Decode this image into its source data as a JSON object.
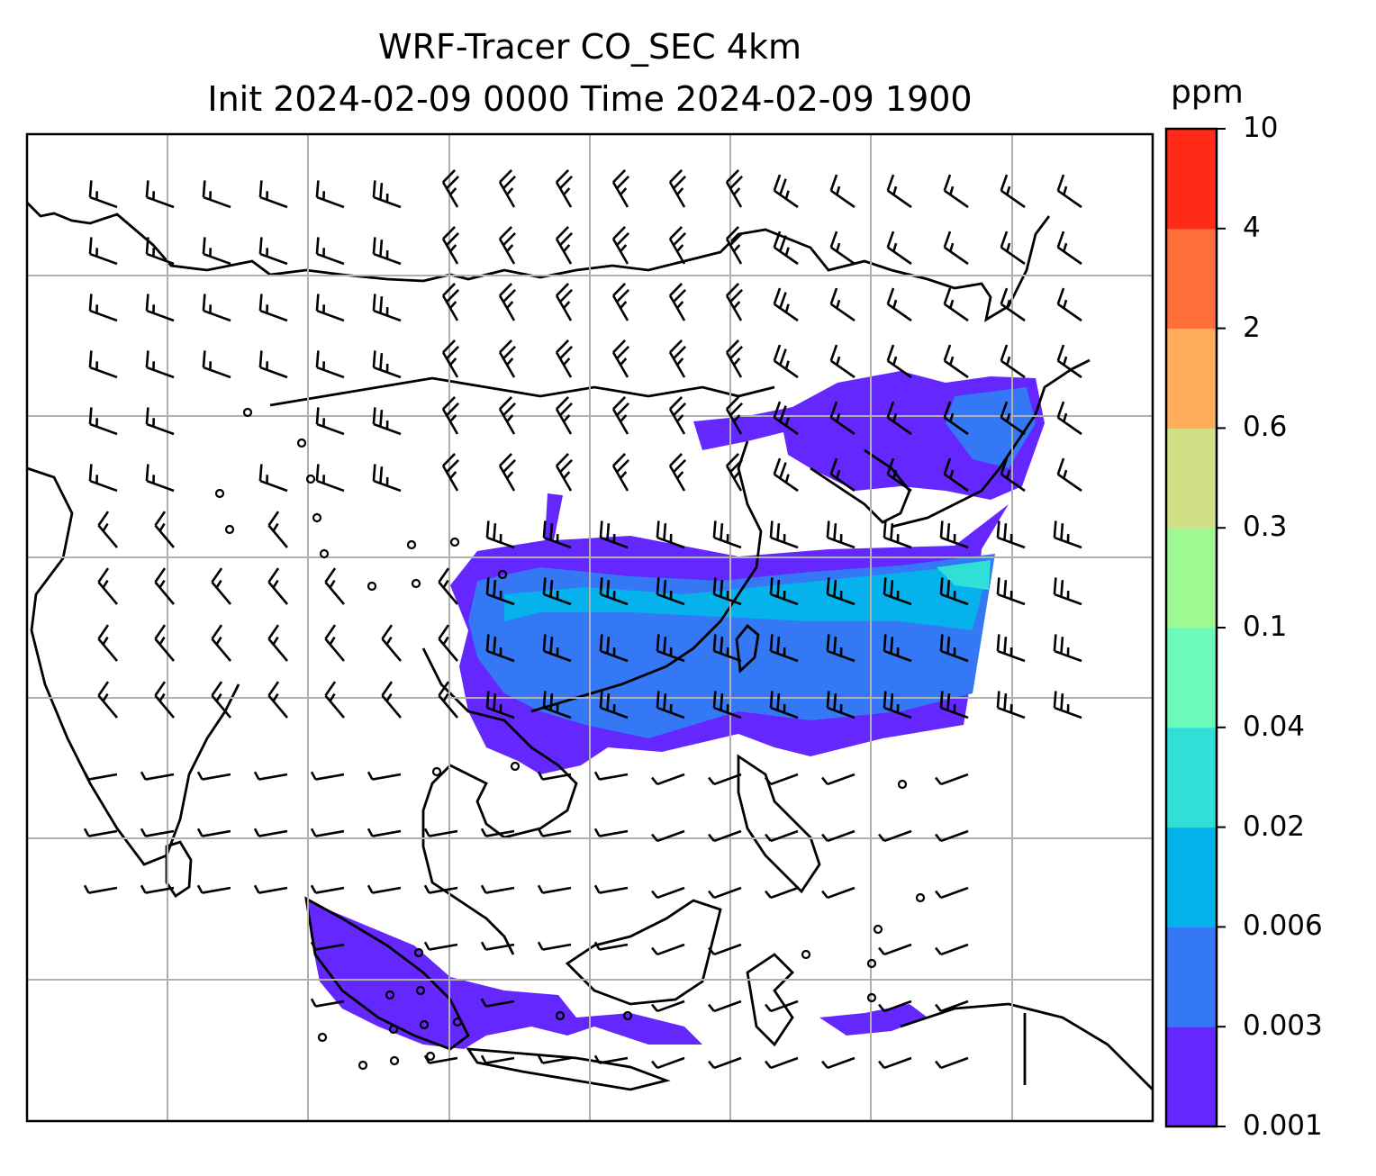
{
  "title": {
    "line1": "WRF-Tracer CO_SEC 4km",
    "line2": "Init 2024-02-09 0000 Time 2024-02-09 1900"
  },
  "colorbar": {
    "unit": "ppm",
    "levels": [
      "0.001",
      "0.003",
      "0.006",
      "0.02",
      "0.04",
      "0.1",
      "0.3",
      "0.6",
      "2",
      "4",
      "10"
    ],
    "colors": [
      "#6428ff",
      "#3478f5",
      "#05b2ec",
      "#30dfd6",
      "#6cf9bb",
      "#9ff993",
      "#cfe086",
      "#ffad5a",
      "#ff6f3a",
      "#ff2a17"
    ]
  },
  "chart_data": {
    "type": "heatmap",
    "title": "WRF-Tracer CO_SEC 4km\nInit 2024-02-09 0000 Time 2024-02-09 1900",
    "colorbar_label": "ppm",
    "colorbar_ticks": [
      0.001,
      0.003,
      0.006,
      0.02,
      0.04,
      0.1,
      0.3,
      0.6,
      2,
      4,
      10
    ],
    "grid": true,
    "overlays": [
      "coastlines",
      "wind barbs"
    ],
    "field_summary": "Tracer band mostly 0.001–0.02 ppm across southern China–Taiwan toward Japan; patches of 0.001–0.003 ppm over Korea/Japan and over Sumatra–Java region"
  }
}
